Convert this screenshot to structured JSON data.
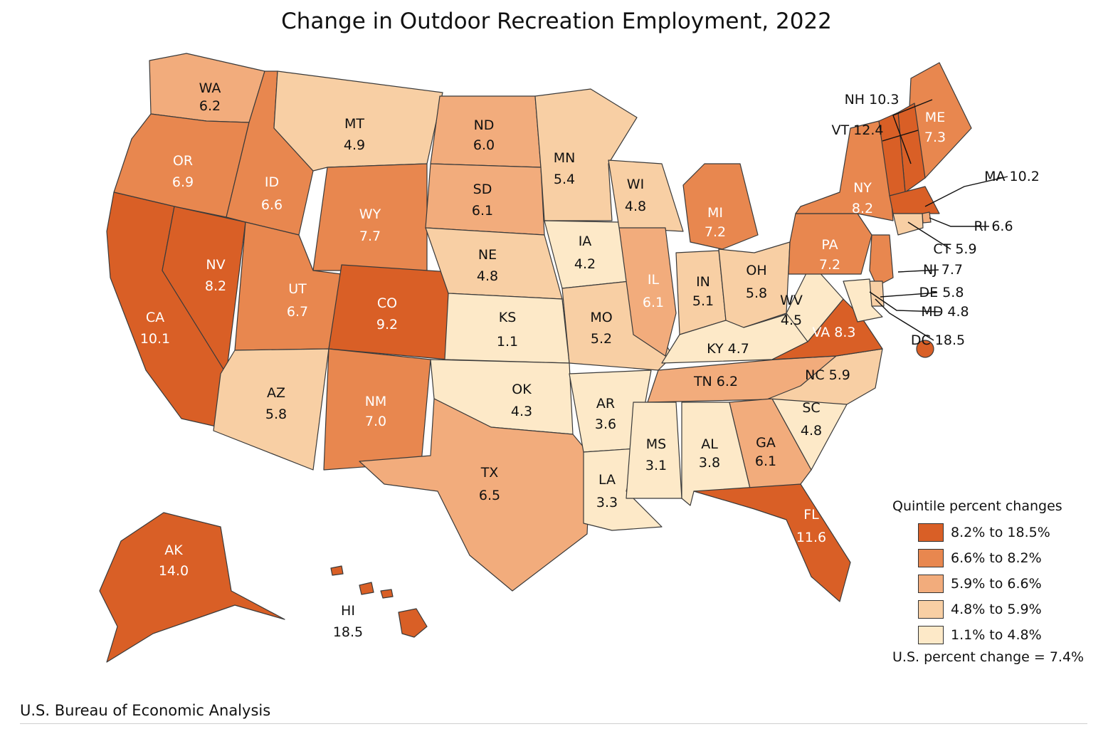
{
  "title": "Change in Outdoor Recreation Employment, 2022",
  "source": "U.S. Bureau of Economic Analysis",
  "legend": {
    "heading": "Quintile percent changes",
    "classes": [
      {
        "label": "8.2% to 18.5%",
        "color": "#d95f26"
      },
      {
        "label": "6.6% to 8.2%",
        "color": "#e8874f"
      },
      {
        "label": "5.9% to 6.6%",
        "color": "#f2ac7c"
      },
      {
        "label": "4.8% to 5.9%",
        "color": "#f8cfa4"
      },
      {
        "label": "1.1% to 4.8%",
        "color": "#fde9c8"
      }
    ],
    "note": "U.S. percent change = 7.4%"
  },
  "states": [
    {
      "code": "WA",
      "value": "6.2",
      "class": 2
    },
    {
      "code": "OR",
      "value": "6.9",
      "class": 1
    },
    {
      "code": "CA",
      "value": "10.1",
      "class": 0
    },
    {
      "code": "NV",
      "value": "8.2",
      "class": 0
    },
    {
      "code": "ID",
      "value": "6.6",
      "class": 1
    },
    {
      "code": "MT",
      "value": "4.9",
      "class": 3
    },
    {
      "code": "WY",
      "value": "7.7",
      "class": 1
    },
    {
      "code": "UT",
      "value": "6.7",
      "class": 1
    },
    {
      "code": "AZ",
      "value": "5.8",
      "class": 3
    },
    {
      "code": "CO",
      "value": "9.2",
      "class": 0
    },
    {
      "code": "NM",
      "value": "7.0",
      "class": 1
    },
    {
      "code": "ND",
      "value": "6.0",
      "class": 2
    },
    {
      "code": "SD",
      "value": "6.1",
      "class": 2
    },
    {
      "code": "NE",
      "value": "4.8",
      "class": 3
    },
    {
      "code": "KS",
      "value": "1.1",
      "class": 4
    },
    {
      "code": "OK",
      "value": "4.3",
      "class": 4
    },
    {
      "code": "TX",
      "value": "6.5",
      "class": 2
    },
    {
      "code": "MN",
      "value": "5.4",
      "class": 3
    },
    {
      "code": "IA",
      "value": "4.2",
      "class": 4
    },
    {
      "code": "MO",
      "value": "5.2",
      "class": 3
    },
    {
      "code": "AR",
      "value": "3.6",
      "class": 4
    },
    {
      "code": "LA",
      "value": "3.3",
      "class": 4
    },
    {
      "code": "WI",
      "value": "4.8",
      "class": 3
    },
    {
      "code": "IL",
      "value": "6.1",
      "class": 2
    },
    {
      "code": "MI",
      "value": "7.2",
      "class": 1
    },
    {
      "code": "IN",
      "value": "5.1",
      "class": 3
    },
    {
      "code": "OH",
      "value": "5.8",
      "class": 3
    },
    {
      "code": "KY",
      "value": "4.7",
      "class": 4
    },
    {
      "code": "TN",
      "value": "6.2",
      "class": 2
    },
    {
      "code": "MS",
      "value": "3.1",
      "class": 4
    },
    {
      "code": "AL",
      "value": "3.8",
      "class": 4
    },
    {
      "code": "GA",
      "value": "6.1",
      "class": 2
    },
    {
      "code": "FL",
      "value": "11.6",
      "class": 0
    },
    {
      "code": "SC",
      "value": "4.8",
      "class": 4
    },
    {
      "code": "NC",
      "value": "5.9",
      "class": 3
    },
    {
      "code": "VA",
      "value": "8.3",
      "class": 0
    },
    {
      "code": "WV",
      "value": "4.5",
      "class": 4
    },
    {
      "code": "PA",
      "value": "7.2",
      "class": 1
    },
    {
      "code": "NY",
      "value": "8.2",
      "class": 1
    },
    {
      "code": "ME",
      "value": "7.3",
      "class": 1
    },
    {
      "code": "NH",
      "value": "10.3",
      "class": 0
    },
    {
      "code": "VT",
      "value": "12.4",
      "class": 0
    },
    {
      "code": "MA",
      "value": "10.2",
      "class": 0
    },
    {
      "code": "RI",
      "value": "6.6",
      "class": 2
    },
    {
      "code": "CT",
      "value": "5.9",
      "class": 3
    },
    {
      "code": "NJ",
      "value": "7.7",
      "class": 1
    },
    {
      "code": "DE",
      "value": "5.8",
      "class": 3
    },
    {
      "code": "MD",
      "value": "4.8",
      "class": 4
    },
    {
      "code": "DC",
      "value": "18.5",
      "class": 0
    },
    {
      "code": "AK",
      "value": "14.0",
      "class": 0
    },
    {
      "code": "HI",
      "value": "18.5",
      "class": 0
    }
  ]
}
